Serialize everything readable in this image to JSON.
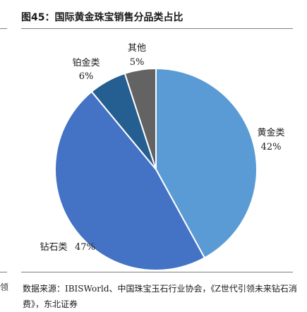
{
  "header": {
    "title": "图45：国际黄金珠宝销售分品类占比"
  },
  "footer": {
    "source": "数据来源：IBISWorld、中国珠宝玉石行业协会，《Z世代引领未来钻石消费》，东北证券",
    "stray_left": "领"
  },
  "chart_data": {
    "type": "pie",
    "categories": [
      "黄金类",
      "钻石类",
      "铂金类",
      "其他"
    ],
    "values": [
      42,
      47,
      6,
      5
    ],
    "value_labels": [
      "42%",
      "47%",
      "6%",
      "5%"
    ],
    "colors": [
      "#5b9bd5",
      "#4472c4",
      "#255e91",
      "#636363"
    ],
    "start_angle_deg": 0,
    "direction": "clockwise"
  }
}
